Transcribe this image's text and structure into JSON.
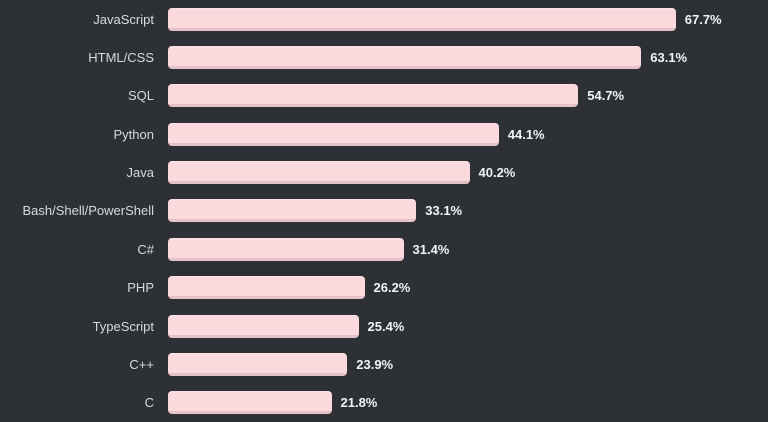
{
  "chart_data": {
    "type": "bar",
    "orientation": "horizontal",
    "title": "",
    "xlabel": "",
    "ylabel": "",
    "grid": false,
    "legend": null,
    "xlim": [
      0,
      75
    ],
    "categories": [
      "JavaScript",
      "HTML/CSS",
      "SQL",
      "Python",
      "Java",
      "Bash/Shell/PowerShell",
      "C#",
      "PHP",
      "TypeScript",
      "C++",
      "C"
    ],
    "values": [
      67.7,
      63.1,
      54.7,
      44.1,
      40.2,
      33.1,
      31.4,
      26.2,
      25.4,
      23.9,
      21.8
    ],
    "value_labels": [
      "67.7%",
      "63.1%",
      "54.7%",
      "44.1%",
      "40.2%",
      "33.1%",
      "31.4%",
      "26.2%",
      "25.4%",
      "23.9%",
      "21.8%"
    ],
    "colors": {
      "background": "#2d3136",
      "bar_fill": "#fcd9dc",
      "bar_edge_bottom": "#e5c2c7",
      "category_text": "#d9dadc",
      "value_text": "#f2f3f5"
    }
  }
}
